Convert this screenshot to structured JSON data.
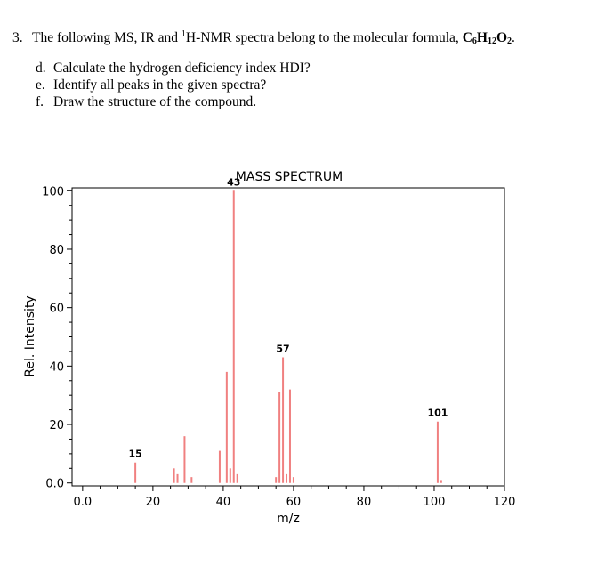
{
  "question": {
    "number": "3.",
    "text_before": "The following MS, IR and ",
    "sup": "1",
    "text_after": "H-NMR spectra belong to the molecular formula, ",
    "formula": [
      {
        "t": "C",
        "s": "6"
      },
      {
        "t": "H",
        "s": "12"
      },
      {
        "t": "O",
        "s": "2"
      }
    ],
    "end": ".",
    "sub_questions": [
      {
        "letter": "d.",
        "text": "Calculate the hydrogen deficiency index HDI?"
      },
      {
        "letter": "e.",
        "text": "Identify all peaks in the given spectra?"
      },
      {
        "letter": "f.",
        "text": "Draw the structure of the compound."
      }
    ]
  },
  "chart_data": {
    "type": "bar",
    "title": "MASS SPECTRUM",
    "xlabel": "m/z",
    "ylabel": "Rel. Intensity",
    "xlim": [
      -3,
      120
    ],
    "ylim": [
      -1,
      101
    ],
    "x_ticks": [
      0,
      20,
      40,
      60,
      80,
      100,
      120
    ],
    "x_tick_labels": [
      "0.0",
      "20",
      "40",
      "60",
      "80",
      "100",
      "120"
    ],
    "y_ticks": [
      0,
      20,
      40,
      60,
      80,
      100
    ],
    "y_tick_labels": [
      "0.0",
      "20",
      "40",
      "60",
      "80",
      "100"
    ],
    "grid": false,
    "bar_color": "#f08080",
    "peaks": [
      {
        "mz": 15,
        "intensity": 7
      },
      {
        "mz": 26,
        "intensity": 5
      },
      {
        "mz": 27,
        "intensity": 3
      },
      {
        "mz": 29,
        "intensity": 16
      },
      {
        "mz": 31,
        "intensity": 2
      },
      {
        "mz": 39,
        "intensity": 11
      },
      {
        "mz": 41,
        "intensity": 38
      },
      {
        "mz": 42,
        "intensity": 5
      },
      {
        "mz": 43,
        "intensity": 100
      },
      {
        "mz": 44,
        "intensity": 3
      },
      {
        "mz": 55,
        "intensity": 2
      },
      {
        "mz": 56,
        "intensity": 31
      },
      {
        "mz": 57,
        "intensity": 43
      },
      {
        "mz": 58,
        "intensity": 3
      },
      {
        "mz": 59,
        "intensity": 32
      },
      {
        "mz": 60,
        "intensity": 2
      },
      {
        "mz": 101,
        "intensity": 21
      },
      {
        "mz": 102,
        "intensity": 1
      }
    ],
    "labeled_peaks": [
      {
        "mz": 15,
        "intensity": 7,
        "label": "15"
      },
      {
        "mz": 43,
        "intensity": 100,
        "label": "43"
      },
      {
        "mz": 57,
        "intensity": 43,
        "label": "57"
      },
      {
        "mz": 101,
        "intensity": 21,
        "label": "101"
      }
    ]
  }
}
